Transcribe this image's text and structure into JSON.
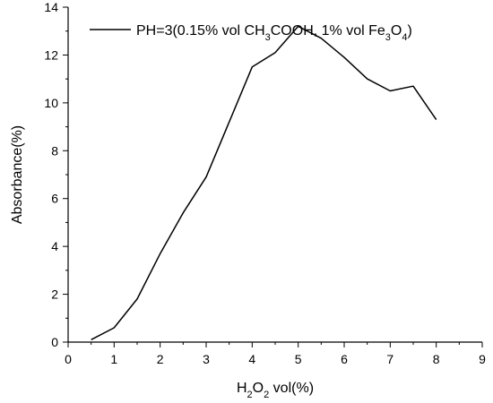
{
  "chart_data": {
    "type": "line",
    "xlabel": {
      "text": "H",
      "sub": "2",
      "tail": "O",
      "sub2": "2",
      "rest": " vol(%)"
    },
    "ylabel": "Absorbance(%)",
    "xlim": [
      0,
      9
    ],
    "ylim": [
      0,
      14
    ],
    "x_ticks": [
      "0",
      "1",
      "2",
      "3",
      "4",
      "5",
      "6",
      "7",
      "8",
      "9"
    ],
    "y_ticks": [
      "0",
      "2",
      "4",
      "6",
      "8",
      "10",
      "12",
      "14"
    ],
    "grid": false,
    "legend_position": "top",
    "series": [
      {
        "name": "PH=3(0.15% vol CH3COOH, 1% vol Fe3O4)",
        "legend_parts": [
          {
            "t": "PH=3(0.15% vol CH",
            "sub": false
          },
          {
            "t": "3",
            "sub": true
          },
          {
            "t": "COOH, 1% vol Fe",
            "sub": false
          },
          {
            "t": "3",
            "sub": true
          },
          {
            "t": "O",
            "sub": false
          },
          {
            "t": "4",
            "sub": true
          },
          {
            "t": ")",
            "sub": false
          }
        ],
        "color": "#000000",
        "x": [
          0.5,
          1.0,
          1.5,
          2.0,
          2.5,
          3.0,
          3.5,
          4.0,
          4.5,
          5.0,
          5.5,
          6.0,
          6.5,
          7.0,
          7.5,
          8.0
        ],
        "y": [
          0.1,
          0.6,
          1.8,
          3.7,
          5.4,
          6.9,
          9.2,
          11.5,
          12.1,
          13.2,
          12.7,
          11.9,
          11.0,
          10.5,
          10.7,
          9.3
        ]
      }
    ]
  }
}
